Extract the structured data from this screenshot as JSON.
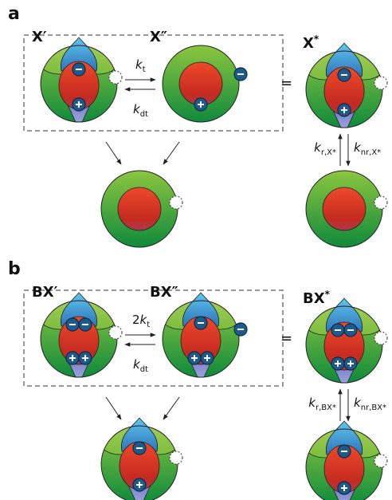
{
  "panels": [
    {
      "label": "a",
      "species": [
        {
          "text": "X′"
        },
        {
          "text": "X″"
        },
        {
          "text": "X",
          "superscript": "*"
        }
      ],
      "equals": "=",
      "rates": {
        "forward": {
          "symbol": "k",
          "subscript": "t"
        },
        "backward": {
          "symbol": "k",
          "subscript": "dt"
        },
        "radiative": {
          "symbol": "k",
          "subscript": "r,X*"
        },
        "nonradiative": {
          "symbol": "k",
          "subscript": "nr,X*"
        }
      }
    },
    {
      "label": "b",
      "species": [
        {
          "text": "BX′"
        },
        {
          "text": "BX″"
        },
        {
          "text": "BX",
          "superscript": "*"
        }
      ],
      "equals": "=",
      "rates": {
        "forward": {
          "coefficient": "2",
          "symbol": "k",
          "subscript": "t"
        },
        "backward": {
          "symbol": "k",
          "subscript": "dt"
        },
        "radiative": {
          "symbol": "k",
          "subscript": "r,BX*"
        },
        "nonradiative": {
          "symbol": "k",
          "subscript": "nr,BX*"
        }
      }
    }
  ]
}
